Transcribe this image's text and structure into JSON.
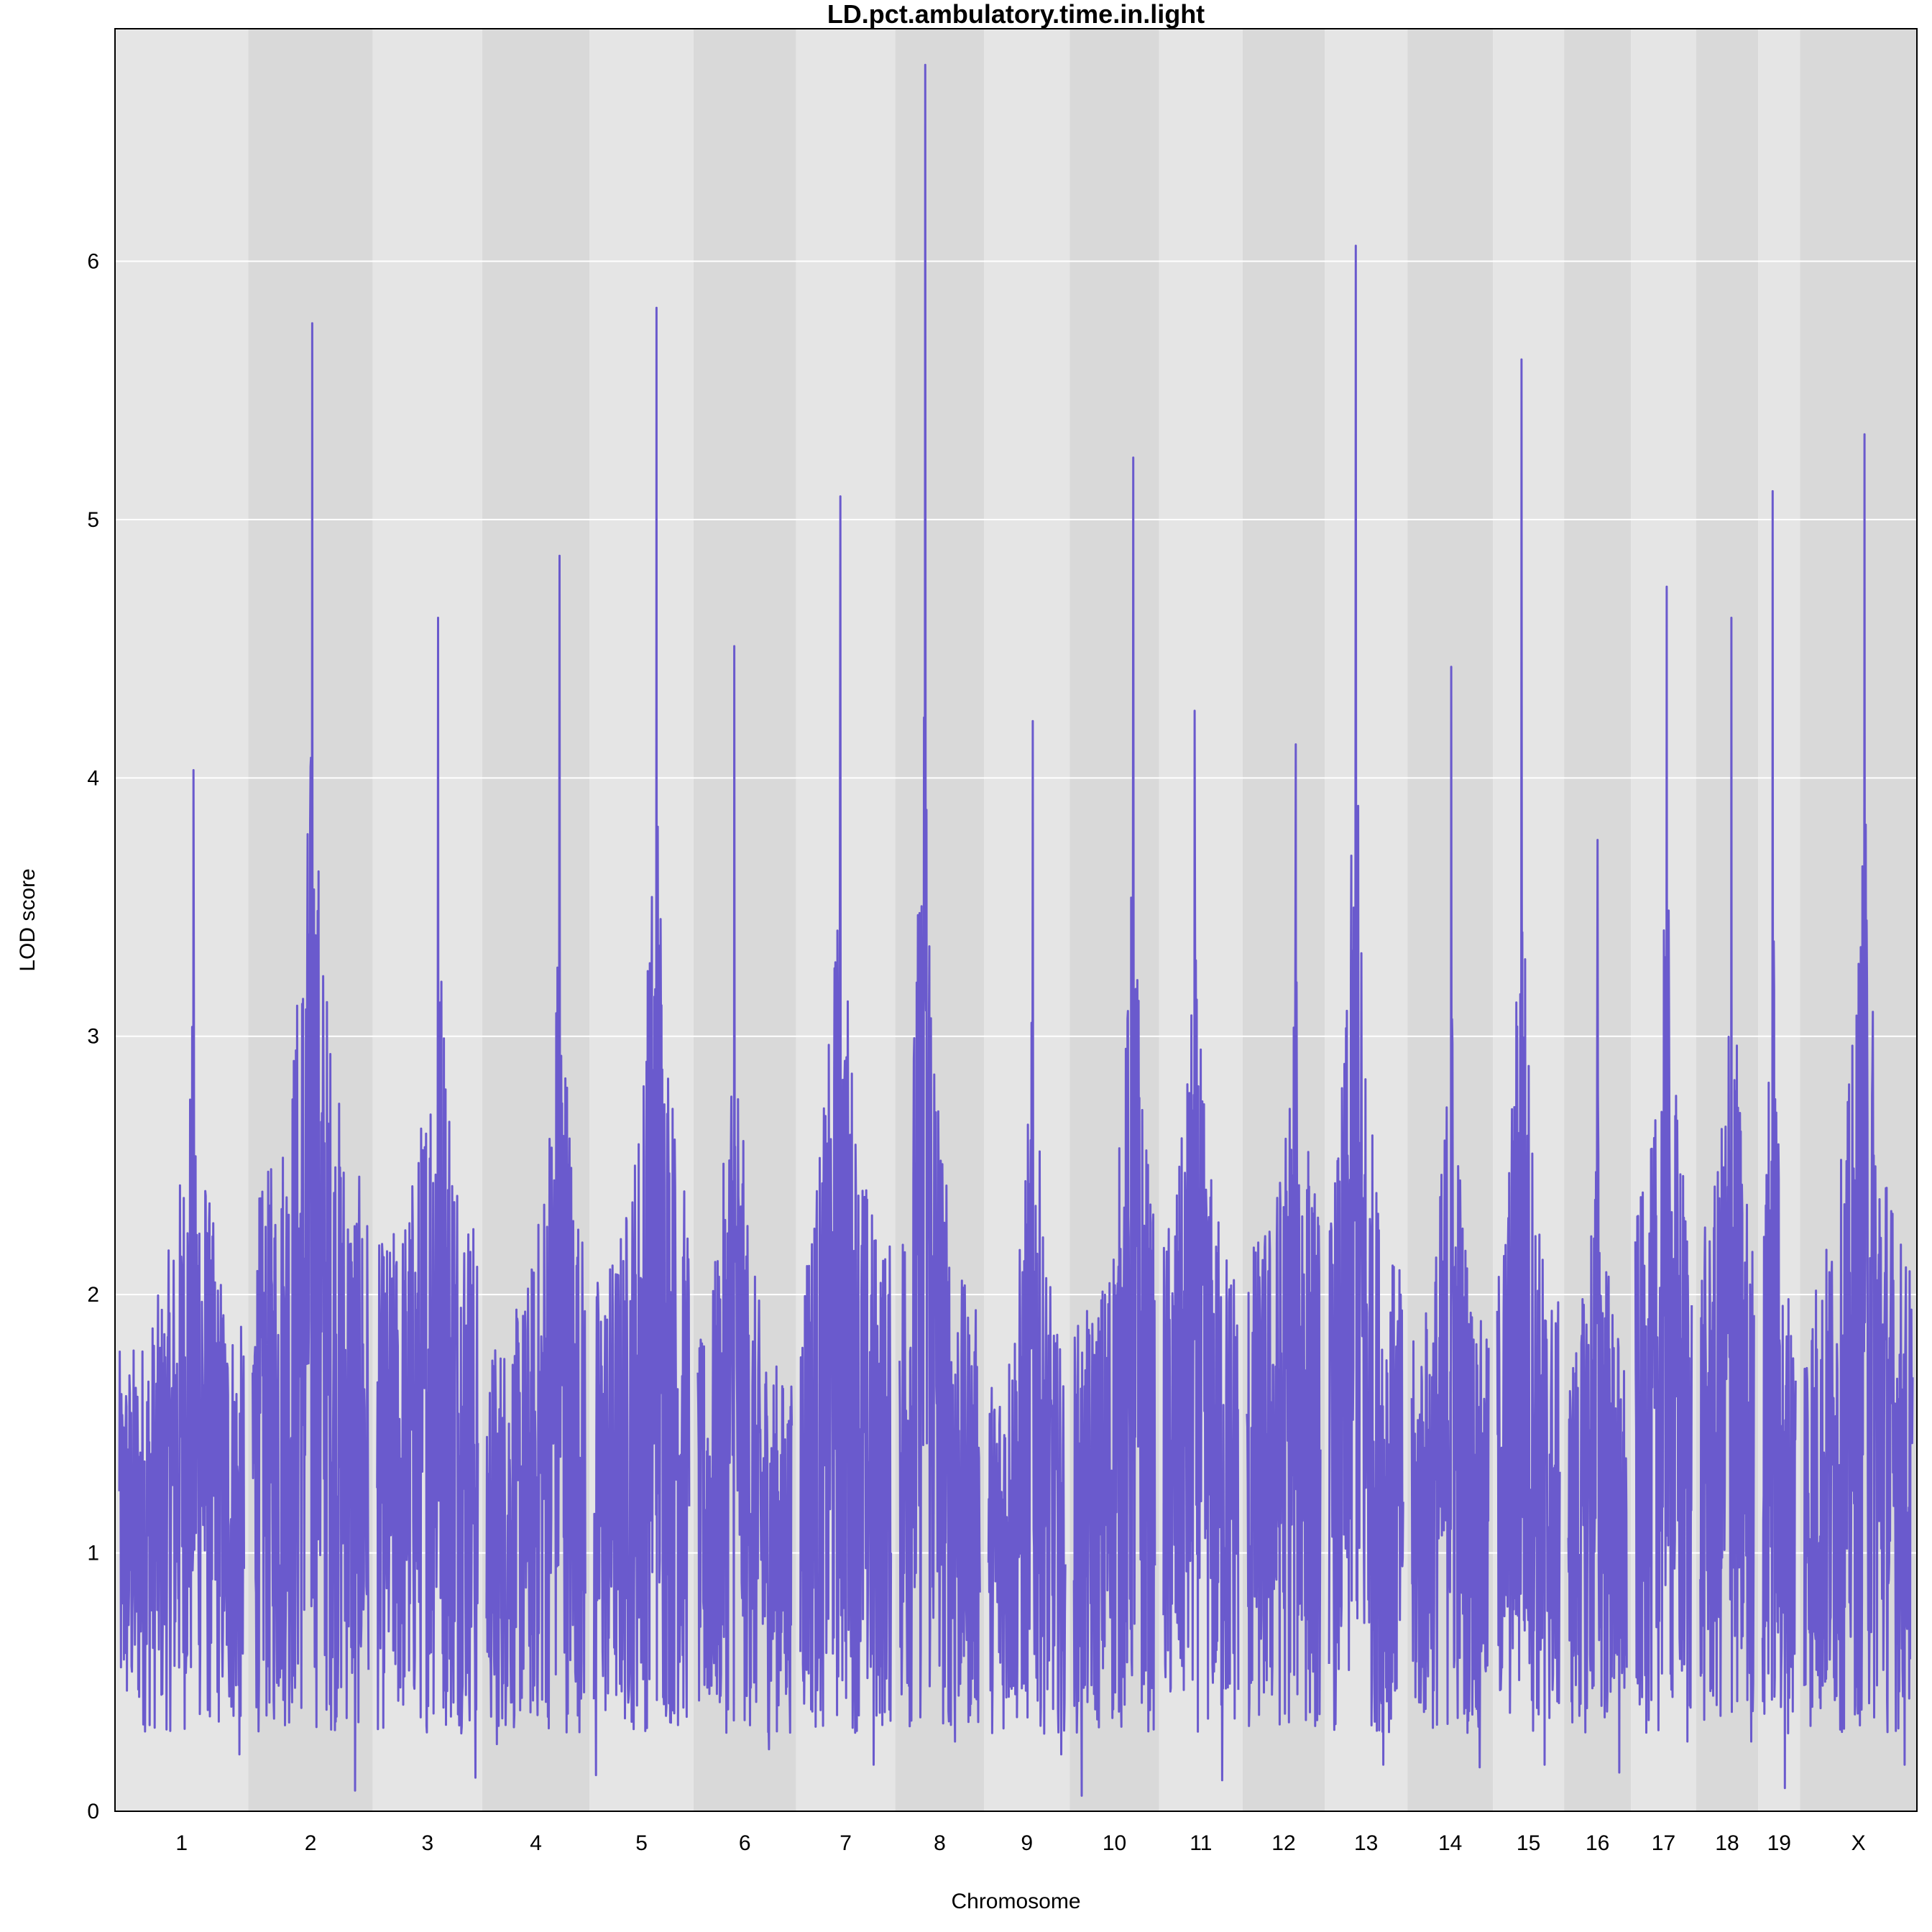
{
  "chart_data": {
    "type": "line",
    "title": "LD.pct.ambulatory.time.in.light",
    "xlabel": "Chromosome",
    "ylabel": "LOD score",
    "ylim": [
      0,
      6.9
    ],
    "yticks": [
      0,
      1,
      2,
      3,
      4,
      5,
      6
    ],
    "grid": true,
    "line_color": "#6a5acd",
    "band_colors": [
      "#e5e5e5",
      "#d9d9d9"
    ],
    "chromosomes": [
      {
        "label": "1",
        "len": 195,
        "peak": 4.03,
        "min": 0.22
      },
      {
        "label": "2",
        "len": 182,
        "peak": 5.76,
        "min": 0.08
      },
      {
        "label": "3",
        "len": 160,
        "peak": 4.62,
        "min": 0.13
      },
      {
        "label": "4",
        "len": 157,
        "peak": 4.86,
        "min": 0.26
      },
      {
        "label": "5",
        "len": 152,
        "peak": 5.82,
        "min": 0.14
      },
      {
        "label": "6",
        "len": 150,
        "peak": 4.51,
        "min": 0.24
      },
      {
        "label": "7",
        "len": 145,
        "peak": 5.09,
        "min": 0.18
      },
      {
        "label": "8",
        "len": 130,
        "peak": 6.76,
        "min": 0.27
      },
      {
        "label": "9",
        "len": 125,
        "peak": 4.22,
        "min": 0.22
      },
      {
        "label": "10",
        "len": 131,
        "peak": 5.24,
        "min": 0.06
      },
      {
        "label": "11",
        "len": 122,
        "peak": 4.26,
        "min": 0.12
      },
      {
        "label": "12",
        "len": 120,
        "peak": 4.13,
        "min": 0.33
      },
      {
        "label": "13",
        "len": 121,
        "peak": 6.06,
        "min": 0.18
      },
      {
        "label": "14",
        "len": 125,
        "peak": 4.43,
        "min": 0.17
      },
      {
        "label": "15",
        "len": 104,
        "peak": 5.62,
        "min": 0.18
      },
      {
        "label": "16",
        "len": 98,
        "peak": 3.76,
        "min": 0.15
      },
      {
        "label": "17",
        "len": 95,
        "peak": 4.74,
        "min": 0.27
      },
      {
        "label": "18",
        "len": 91,
        "peak": 4.62,
        "min": 0.27
      },
      {
        "label": "19",
        "len": 61,
        "peak": 5.11,
        "min": 0.09
      },
      {
        "label": "X",
        "len": 171,
        "peak": 5.33,
        "min": 0.18
      }
    ]
  }
}
